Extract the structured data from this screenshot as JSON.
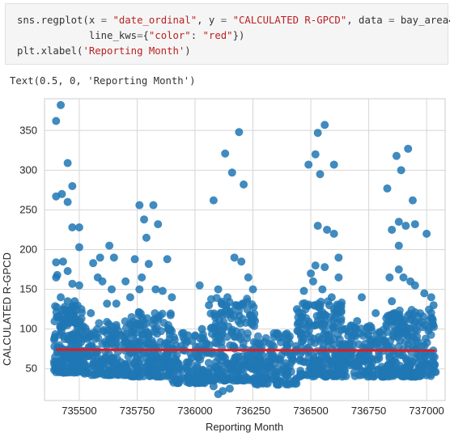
{
  "code_cell": {
    "lines": [
      {
        "parts": [
          {
            "t": "sns.regplot(x ",
            "c": "kw"
          },
          {
            "t": "=",
            "c": "op"
          },
          {
            "t": " ",
            "c": "kw"
          },
          {
            "t": "\"date_ordinal\"",
            "c": "str"
          },
          {
            "t": ", y ",
            "c": "kw"
          },
          {
            "t": "=",
            "c": "op"
          },
          {
            "t": " ",
            "c": "kw"
          },
          {
            "t": "\"CALCULATED R-GPCD\"",
            "c": "str"
          },
          {
            "t": ", data ",
            "c": "kw"
          },
          {
            "t": "=",
            "c": "op"
          },
          {
            "t": " bay_area4,",
            "c": "kw"
          }
        ]
      },
      {
        "parts": [
          {
            "t": "            line_kws",
            "c": "kw"
          },
          {
            "t": "=",
            "c": "op"
          },
          {
            "t": "{",
            "c": "kw"
          },
          {
            "t": "\"color\"",
            "c": "str"
          },
          {
            "t": ": ",
            "c": "kw"
          },
          {
            "t": "\"red\"",
            "c": "str"
          },
          {
            "t": "})",
            "c": "kw"
          }
        ]
      },
      {
        "parts": [
          {
            "t": "plt.xlabel(",
            "c": "kw"
          },
          {
            "t": "'Reporting Month'",
            "c": "str"
          },
          {
            "t": ")",
            "c": "kw"
          }
        ]
      }
    ]
  },
  "output": {
    "text": "Text(0.5, 0, 'Reporting Month')"
  },
  "chart_data": {
    "type": "scatter",
    "xlabel": "Reporting Month",
    "ylabel": "CALCULATED R-GPCD",
    "xlim": [
      735350,
      737080
    ],
    "ylim": [
      10,
      390
    ],
    "xticks": [
      735500,
      735750,
      736000,
      736250,
      736500,
      736750,
      737000
    ],
    "yticks": [
      50,
      100,
      150,
      200,
      250,
      300,
      350
    ],
    "grid": true,
    "point_color": "#1f77b4",
    "line_color": "#e41a1c",
    "regression": {
      "x": [
        735400,
        737040
      ],
      "y": [
        74,
        73
      ]
    },
    "points": [
      [
        735400,
        362
      ],
      [
        735420,
        382
      ],
      [
        735450,
        309
      ],
      [
        735400,
        267
      ],
      [
        735425,
        270
      ],
      [
        735450,
        260
      ],
      [
        735470,
        280
      ],
      [
        735470,
        228
      ],
      [
        735500,
        228
      ],
      [
        735500,
        203
      ],
      [
        735400,
        184
      ],
      [
        735430,
        185
      ],
      [
        735405,
        168
      ],
      [
        735400,
        165
      ],
      [
        735450,
        173
      ],
      [
        735470,
        157
      ],
      [
        735500,
        155
      ],
      [
        735420,
        140
      ],
      [
        735450,
        135
      ],
      [
        735480,
        135
      ],
      [
        735590,
        190
      ],
      [
        735630,
        205
      ],
      [
        735560,
        183
      ],
      [
        735580,
        165
      ],
      [
        735650,
        190
      ],
      [
        735600,
        160
      ],
      [
        735640,
        150
      ],
      [
        735660,
        132
      ],
      [
        735620,
        132
      ],
      [
        735550,
        120
      ],
      [
        735760,
        256
      ],
      [
        735780,
        238
      ],
      [
        735820,
        256
      ],
      [
        735840,
        232
      ],
      [
        735790,
        215
      ],
      [
        735880,
        188
      ],
      [
        735740,
        188
      ],
      [
        735800,
        182
      ],
      [
        735770,
        165
      ],
      [
        735700,
        160
      ],
      [
        735830,
        150
      ],
      [
        735860,
        148
      ],
      [
        735900,
        140
      ],
      [
        735720,
        140
      ],
      [
        735760,
        150
      ],
      [
        736020,
        155
      ],
      [
        736080,
        262
      ],
      [
        736130,
        321
      ],
      [
        736160,
        297
      ],
      [
        736190,
        348
      ],
      [
        736210,
        282
      ],
      [
        736170,
        190
      ],
      [
        736200,
        185
      ],
      [
        736100,
        150
      ],
      [
        736140,
        140
      ],
      [
        736230,
        165
      ],
      [
        736250,
        150
      ],
      [
        736060,
        130
      ],
      [
        736110,
        120
      ],
      [
        736180,
        130
      ],
      [
        736030,
        100
      ],
      [
        735950,
        95
      ],
      [
        735970,
        92
      ],
      [
        736490,
        307
      ],
      [
        736530,
        347
      ],
      [
        736560,
        357
      ],
      [
        736600,
        307
      ],
      [
        736520,
        320
      ],
      [
        736540,
        295
      ],
      [
        736530,
        230
      ],
      [
        736570,
        225
      ],
      [
        736600,
        220
      ],
      [
        736620,
        190
      ],
      [
        736520,
        180
      ],
      [
        736560,
        178
      ],
      [
        736500,
        170
      ],
      [
        736620,
        165
      ],
      [
        736470,
        148
      ],
      [
        736510,
        160
      ],
      [
        736550,
        150
      ],
      [
        736590,
        140
      ],
      [
        736440,
        125
      ],
      [
        736580,
        130
      ],
      [
        736830,
        277
      ],
      [
        736870,
        318
      ],
      [
        736890,
        300
      ],
      [
        736920,
        327
      ],
      [
        736940,
        262
      ],
      [
        736950,
        232
      ],
      [
        737000,
        220
      ],
      [
        736850,
        225
      ],
      [
        736880,
        235
      ],
      [
        736910,
        230
      ],
      [
        736880,
        205
      ],
      [
        736880,
        175
      ],
      [
        736900,
        165
      ],
      [
        736930,
        160
      ],
      [
        736950,
        155
      ],
      [
        736990,
        145
      ],
      [
        736850,
        135
      ],
      [
        736840,
        165
      ],
      [
        736720,
        140
      ],
      [
        736780,
        120
      ],
      [
        737020,
        140
      ],
      [
        737030,
        130
      ],
      [
        736700,
        110
      ],
      [
        736650,
        100
      ],
      [
        736100,
        18
      ],
      [
        736120,
        22
      ],
      [
        736150,
        25
      ],
      [
        736080,
        28
      ]
    ],
    "dense_band": {
      "description": "",
      "clusters": [
        {
          "x": [
            735390,
            735520
          ],
          "y": [
            45,
            130
          ],
          "n": 220
        },
        {
          "x": [
            735520,
            735720
          ],
          "y": [
            42,
            110
          ],
          "n": 170
        },
        {
          "x": [
            735720,
            735900
          ],
          "y": [
            40,
            125
          ],
          "n": 200
        },
        {
          "x": [
            735900,
            736060
          ],
          "y": [
            32,
            95
          ],
          "n": 130
        },
        {
          "x": [
            736060,
            736260
          ],
          "y": [
            35,
            140
          ],
          "n": 210
        },
        {
          "x": [
            736260,
            736440
          ],
          "y": [
            30,
            95
          ],
          "n": 150
        },
        {
          "x": [
            736440,
            736640
          ],
          "y": [
            40,
            135
          ],
          "n": 230
        },
        {
          "x": [
            736640,
            736820
          ],
          "y": [
            40,
            105
          ],
          "n": 150
        },
        {
          "x": [
            736820,
            737040
          ],
          "y": [
            40,
            125
          ],
          "n": 230
        }
      ]
    }
  }
}
